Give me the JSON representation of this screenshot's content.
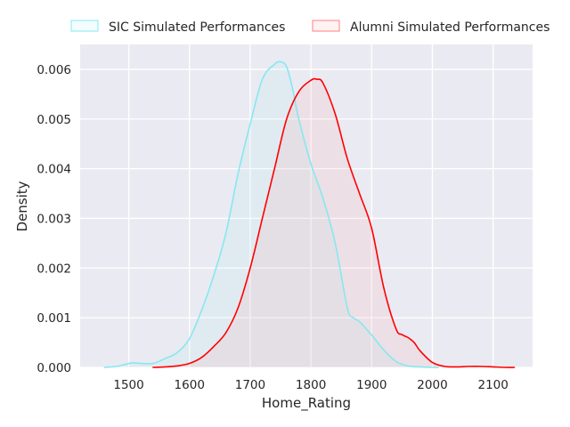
{
  "chart_data": {
    "type": "line",
    "chart_kind": "kde",
    "title": "",
    "xlabel": "Home_Rating",
    "ylabel": "Density",
    "xlim": [
      1420,
      2165
    ],
    "ylim": [
      0,
      0.0065
    ],
    "x_ticks": [
      1500,
      1600,
      1700,
      1800,
      1900,
      2000,
      2100
    ],
    "y_ticks": [
      0.0,
      0.001,
      0.002,
      0.003,
      0.004,
      0.005,
      0.006
    ],
    "y_tick_labels": [
      "0.000",
      "0.001",
      "0.002",
      "0.003",
      "0.004",
      "0.005",
      "0.006"
    ],
    "grid": true,
    "legend_position": "top-center (outside plot)",
    "background_color": "#eaeaf2",
    "grid_color": "#ffffff",
    "series": [
      {
        "name": "SIC Simulated Performances",
        "color": "#87e8f0",
        "fill_color": "#87e8f0",
        "fill_opacity": 0.1,
        "x": [
          1460,
          1480,
          1500,
          1510,
          1520,
          1540,
          1560,
          1580,
          1600,
          1620,
          1640,
          1660,
          1680,
          1700,
          1720,
          1740,
          1750,
          1760,
          1770,
          1780,
          1800,
          1820,
          1840,
          1860,
          1870,
          1880,
          1900,
          1920,
          1940,
          1960,
          1980,
          2000,
          2010
        ],
        "values": [
          0.0,
          2e-05,
          8e-05,
          9e-05,
          8e-05,
          8e-05,
          0.00018,
          0.0003,
          0.00058,
          0.00115,
          0.00185,
          0.0027,
          0.0039,
          0.0049,
          0.0058,
          0.0061,
          0.00615,
          0.00605,
          0.0056,
          0.005,
          0.0041,
          0.0034,
          0.0025,
          0.0012,
          0.001,
          0.00092,
          0.00065,
          0.00035,
          0.00012,
          3e-05,
          1e-05,
          0.0,
          0.0
        ]
      },
      {
        "name": "Alumni Simulated Performances",
        "color": "#ff0000",
        "fill_color": "#ff8080",
        "fill_opacity": 0.1,
        "x": [
          1540,
          1560,
          1580,
          1600,
          1620,
          1640,
          1660,
          1680,
          1700,
          1720,
          1740,
          1760,
          1780,
          1800,
          1810,
          1820,
          1840,
          1860,
          1880,
          1900,
          1920,
          1940,
          1950,
          1960,
          1970,
          1980,
          2000,
          2020,
          2040,
          2060,
          2080,
          2100,
          2120,
          2135
        ],
        "values": [
          0.0,
          1e-05,
          3e-05,
          8e-05,
          0.0002,
          0.00042,
          0.0007,
          0.0012,
          0.002,
          0.003,
          0.004,
          0.005,
          0.00555,
          0.00578,
          0.0058,
          0.00572,
          0.0051,
          0.0042,
          0.0035,
          0.0028,
          0.0016,
          0.00078,
          0.00066,
          0.0006,
          0.0005,
          0.00033,
          0.0001,
          2e-05,
          1e-05,
          2e-05,
          2e-05,
          1e-05,
          0.0,
          0.0
        ]
      }
    ]
  }
}
